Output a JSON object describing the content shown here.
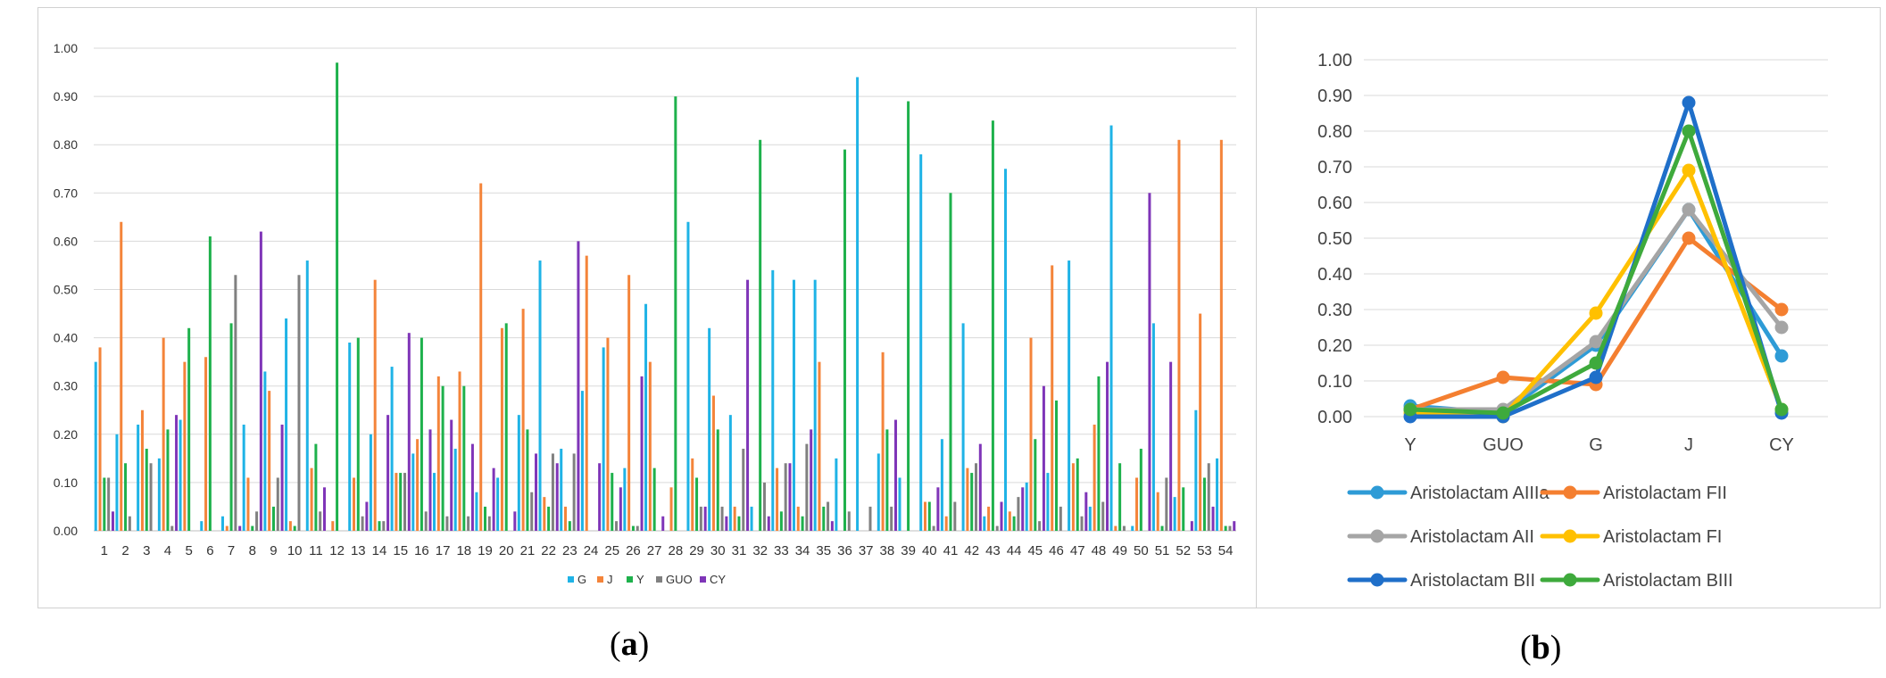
{
  "colors": {
    "G": "#1FB3E6",
    "J": "#F4843A",
    "Y": "#1EB14C",
    "GUO": "#808080",
    "CY": "#7F35B8",
    "grid": "#d9d9d9",
    "Aristolactam AIIIa": "#2E9BD6",
    "Aristolactam FII": "#F47F30",
    "Aristolactam AII": "#A5A5A5",
    "Aristolactam FI": "#FFC000",
    "Aristolactam BII": "#1F6FC9",
    "Aristolactam BIII": "#3EAA3C"
  },
  "captions": {
    "a": "a",
    "b": "b"
  },
  "chart_data": [
    {
      "type": "bar",
      "title": "",
      "xlabel": "",
      "ylabel": "",
      "ylim": [
        0,
        1.0
      ],
      "y_ticks": [
        "0.00",
        "0.10",
        "0.20",
        "0.30",
        "0.40",
        "0.50",
        "0.60",
        "0.70",
        "0.80",
        "0.90",
        "1.00"
      ],
      "grid": true,
      "legend_position": "bottom",
      "categories": [
        "1",
        "2",
        "3",
        "4",
        "5",
        "6",
        "7",
        "8",
        "9",
        "10",
        "11",
        "12",
        "13",
        "14",
        "15",
        "16",
        "17",
        "18",
        "19",
        "20",
        "21",
        "22",
        "23",
        "24",
        "25",
        "26",
        "27",
        "28",
        "29",
        "30",
        "31",
        "32",
        "33",
        "34",
        "35",
        "36",
        "37",
        "38",
        "39",
        "40",
        "41",
        "42",
        "43",
        "44",
        "45",
        "46",
        "47",
        "48",
        "49",
        "50",
        "51",
        "52",
        "53",
        "54"
      ],
      "series": [
        {
          "name": "G",
          "values": [
            0.35,
            0.2,
            0.22,
            0.15,
            0.23,
            0.02,
            0.03,
            0.22,
            0.33,
            0.44,
            0.56,
            0.0,
            0.39,
            0.2,
            0.34,
            0.16,
            0.12,
            0.17,
            0.08,
            0.11,
            0.24,
            0.56,
            0.17,
            0.29,
            0.38,
            0.13,
            0.47,
            0.0,
            0.64,
            0.42,
            0.24,
            0.05,
            0.54,
            0.52,
            0.52,
            0.15,
            0.94,
            0.16,
            0.11,
            0.78,
            0.19,
            0.43,
            0.03,
            0.75,
            0.1,
            0.12,
            0.56,
            0.05,
            0.84,
            0.01,
            0.43,
            0.07,
            0.25,
            0.15
          ]
        },
        {
          "name": "J",
          "values": [
            0.38,
            0.64,
            0.25,
            0.4,
            0.35,
            0.36,
            0.01,
            0.11,
            0.29,
            0.02,
            0.13,
            0.02,
            0.11,
            0.52,
            0.12,
            0.19,
            0.32,
            0.33,
            0.72,
            0.42,
            0.46,
            0.07,
            0.05,
            0.57,
            0.4,
            0.53,
            0.35,
            0.09,
            0.15,
            0.28,
            0.05,
            0.0,
            0.13,
            0.05,
            0.35,
            0.0,
            0.0,
            0.37,
            0.0,
            0.06,
            0.03,
            0.13,
            0.05,
            0.04,
            0.4,
            0.55,
            0.14,
            0.22,
            0.01,
            0.11,
            0.08,
            0.81,
            0.45,
            0.81
          ]
        },
        {
          "name": "Y",
          "values": [
            0.11,
            0.14,
            0.17,
            0.21,
            0.42,
            0.61,
            0.43,
            0.01,
            0.05,
            0.01,
            0.18,
            0.97,
            0.4,
            0.02,
            0.12,
            0.4,
            0.3,
            0.3,
            0.05,
            0.43,
            0.21,
            0.05,
            0.02,
            0.0,
            0.12,
            0.01,
            0.13,
            0.9,
            0.11,
            0.21,
            0.03,
            0.81,
            0.04,
            0.03,
            0.05,
            0.79,
            0.0,
            0.21,
            0.89,
            0.06,
            0.7,
            0.12,
            0.85,
            0.03,
            0.19,
            0.27,
            0.15,
            0.32,
            0.14,
            0.17,
            0.01,
            0.09,
            0.11,
            0.01
          ]
        },
        {
          "name": "GUO",
          "values": [
            0.11,
            0.03,
            0.14,
            0.01,
            0.0,
            0.0,
            0.53,
            0.04,
            0.11,
            0.53,
            0.04,
            0.0,
            0.03,
            0.02,
            0.12,
            0.04,
            0.03,
            0.03,
            0.03,
            0.0,
            0.08,
            0.16,
            0.16,
            0.0,
            0.02,
            0.01,
            0.0,
            0.0,
            0.05,
            0.05,
            0.17,
            0.1,
            0.14,
            0.18,
            0.06,
            0.04,
            0.05,
            0.05,
            0.0,
            0.01,
            0.06,
            0.14,
            0.01,
            0.07,
            0.02,
            0.05,
            0.03,
            0.06,
            0.01,
            0.0,
            0.11,
            0.0,
            0.14,
            0.01
          ]
        },
        {
          "name": "CY",
          "values": [
            0.04,
            0.0,
            0.0,
            0.24,
            0.0,
            0.0,
            0.01,
            0.62,
            0.22,
            0.0,
            0.09,
            0.0,
            0.06,
            0.24,
            0.41,
            0.21,
            0.23,
            0.18,
            0.13,
            0.04,
            0.16,
            0.14,
            0.6,
            0.14,
            0.09,
            0.32,
            0.03,
            0.0,
            0.05,
            0.03,
            0.52,
            0.03,
            0.14,
            0.21,
            0.02,
            0.0,
            0.0,
            0.23,
            0.0,
            0.09,
            0.0,
            0.18,
            0.06,
            0.09,
            0.3,
            0.0,
            0.08,
            0.35,
            0.0,
            0.7,
            0.35,
            0.02,
            0.05,
            0.02
          ]
        }
      ]
    },
    {
      "type": "line",
      "title": "",
      "xlabel": "",
      "ylabel": "",
      "ylim": [
        0,
        1.0
      ],
      "y_ticks": [
        "0.00",
        "0.10",
        "0.20",
        "0.30",
        "0.40",
        "0.50",
        "0.60",
        "0.70",
        "0.80",
        "0.90",
        "1.00"
      ],
      "grid": true,
      "legend_position": "bottom",
      "categories": [
        "Y",
        "GUO",
        "G",
        "J",
        "CY"
      ],
      "series": [
        {
          "name": "Aristolactam AIIIa",
          "values": [
            0.03,
            0.01,
            0.2,
            0.58,
            0.17
          ]
        },
        {
          "name": "Aristolactam FII",
          "values": [
            0.02,
            0.11,
            0.09,
            0.5,
            0.3
          ]
        },
        {
          "name": "Aristolactam AII",
          "values": [
            0.02,
            0.02,
            0.21,
            0.58,
            0.25
          ]
        },
        {
          "name": "Aristolactam FI",
          "values": [
            0.01,
            0.0,
            0.29,
            0.69,
            0.02
          ]
        },
        {
          "name": "Aristolactam BII",
          "values": [
            0.0,
            0.0,
            0.11,
            0.88,
            0.01
          ]
        },
        {
          "name": "Aristolactam BIII",
          "values": [
            0.02,
            0.01,
            0.15,
            0.8,
            0.02
          ]
        }
      ]
    }
  ]
}
